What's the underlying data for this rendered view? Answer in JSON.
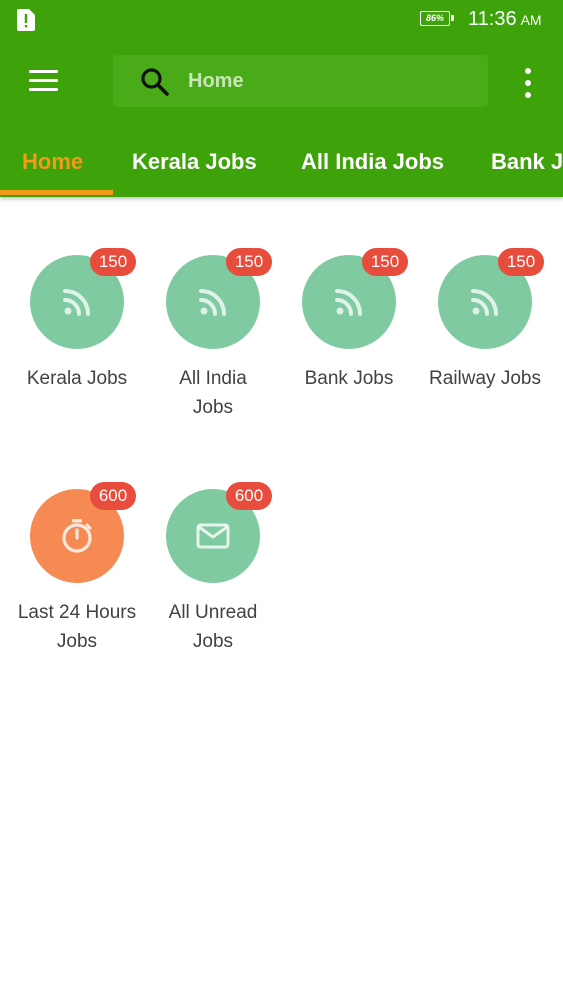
{
  "status_bar": {
    "battery": "86%",
    "time": "11:36",
    "ampm": "AM",
    "sim_icon": "sim-alert-icon"
  },
  "toolbar": {
    "menu_icon": "hamburger-menu-icon",
    "search_placeholder": "Home",
    "search_icon": "search-icon",
    "overflow_icon": "more-vertical-icon"
  },
  "tabs": [
    {
      "label": "Home",
      "active": true
    },
    {
      "label": "Kerala Jobs",
      "active": false
    },
    {
      "label": "All India Jobs",
      "active": false
    },
    {
      "label": "Bank Jobs",
      "active": false
    }
  ],
  "categories": [
    {
      "label": "Kerala Jobs",
      "count": "150",
      "icon": "rss-feed-icon",
      "color": "#7fcaa0"
    },
    {
      "label": "All India Jobs",
      "count": "150",
      "icon": "rss-feed-icon",
      "color": "#7fcaa0"
    },
    {
      "label": "Bank Jobs",
      "count": "150",
      "icon": "rss-feed-icon",
      "color": "#7fcaa0"
    },
    {
      "label": "Railway Jobs",
      "count": "150",
      "icon": "rss-feed-icon",
      "color": "#7fcaa0"
    },
    {
      "label": "Last 24 Hours Jobs",
      "count": "600",
      "icon": "stopwatch-icon",
      "color": "#f58b52"
    },
    {
      "label": "All Unread Jobs",
      "count": "600",
      "icon": "mail-icon",
      "color": "#7fcaa0"
    }
  ],
  "colors": {
    "appbar": "#3ea20b",
    "accent": "#f39a1a",
    "badge": "#e74c3c"
  }
}
